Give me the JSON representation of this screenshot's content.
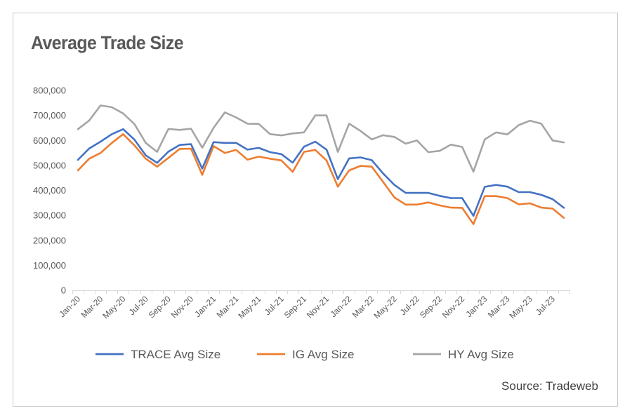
{
  "chart_data": {
    "type": "line",
    "title": "Average Trade Size",
    "source": "Source: Tradeweb",
    "ylim": [
      0,
      800000
    ],
    "y_ticks": [
      "0",
      "100,000",
      "200,000",
      "300,000",
      "400,000",
      "500,000",
      "600,000",
      "700,000",
      "800,000"
    ],
    "y_tick_values": [
      0,
      100000,
      200000,
      300000,
      400000,
      500000,
      600000,
      700000,
      800000
    ],
    "grid": false,
    "legend_position": "bottom",
    "x": [
      "Jan-20",
      "Feb-20",
      "Mar-20",
      "Apr-20",
      "May-20",
      "Jun-20",
      "Jul-20",
      "Aug-20",
      "Sep-20",
      "Oct-20",
      "Nov-20",
      "Dec-20",
      "Jan-21",
      "Feb-21",
      "Mar-21",
      "Apr-21",
      "May-21",
      "Jun-21",
      "Jul-21",
      "Aug-21",
      "Sep-21",
      "Oct-21",
      "Nov-21",
      "Dec-21",
      "Jan-22",
      "Feb-22",
      "Mar-22",
      "Apr-22",
      "May-22",
      "Jun-22",
      "Jul-22",
      "Aug-22",
      "Sep-22",
      "Oct-22",
      "Nov-22",
      "Dec-22",
      "Jan-23",
      "Feb-23",
      "Mar-23",
      "Apr-23",
      "May-23",
      "Jun-23",
      "Jul-23",
      "Aug-23"
    ],
    "x_tick_labels": [
      "Jan-20",
      "Mar-20",
      "May-20",
      "Jul-20",
      "Sep-20",
      "Nov-20",
      "Jan-21",
      "Mar-21",
      "May-21",
      "Jul-21",
      "Sep-21",
      "Nov-21",
      "Jan-22",
      "Mar-22",
      "May-22",
      "Jul-22",
      "Sep-22",
      "Nov-22",
      "Jan-23",
      "Mar-23",
      "May-23",
      "Jul-23"
    ],
    "series": [
      {
        "name": "TRACE Avg Size",
        "color": "#4472c4",
        "values": [
          522000,
          568000,
          595000,
          625000,
          645000,
          603000,
          540000,
          510000,
          555000,
          582000,
          585000,
          487000,
          593000,
          590000,
          590000,
          563000,
          570000,
          553000,
          545000,
          511000,
          575000,
          595000,
          563000,
          445000,
          528000,
          532000,
          521000,
          468000,
          422000,
          390000,
          390000,
          390000,
          378000,
          369000,
          369000,
          298000,
          414000,
          422000,
          415000,
          393000,
          393000,
          382000,
          365000,
          330000
        ]
      },
      {
        "name": "IG Avg Size",
        "color": "#ed7d31",
        "values": [
          480000,
          527000,
          550000,
          590000,
          625000,
          580000,
          527000,
          495000,
          530000,
          566000,
          567000,
          462000,
          577000,
          550000,
          562000,
          523000,
          535000,
          527000,
          520000,
          474000,
          554000,
          562000,
          520000,
          415000,
          480000,
          498000,
          495000,
          434000,
          372000,
          343000,
          343000,
          352000,
          340000,
          331000,
          330000,
          265000,
          377000,
          377000,
          369000,
          344000,
          348000,
          331000,
          327000,
          290000
        ]
      },
      {
        "name": "HY Avg Size",
        "color": "#a5a5a5",
        "values": [
          645000,
          680000,
          740000,
          733000,
          708000,
          665000,
          590000,
          554000,
          646000,
          642000,
          647000,
          571000,
          650000,
          712000,
          692000,
          667000,
          666000,
          625000,
          620000,
          628000,
          632000,
          700000,
          700000,
          554000,
          667000,
          638000,
          604000,
          621000,
          614000,
          587000,
          600000,
          553000,
          558000,
          583000,
          574000,
          475000,
          604000,
          632000,
          624000,
          661000,
          679000,
          667000,
          600000,
          592000
        ]
      }
    ]
  }
}
